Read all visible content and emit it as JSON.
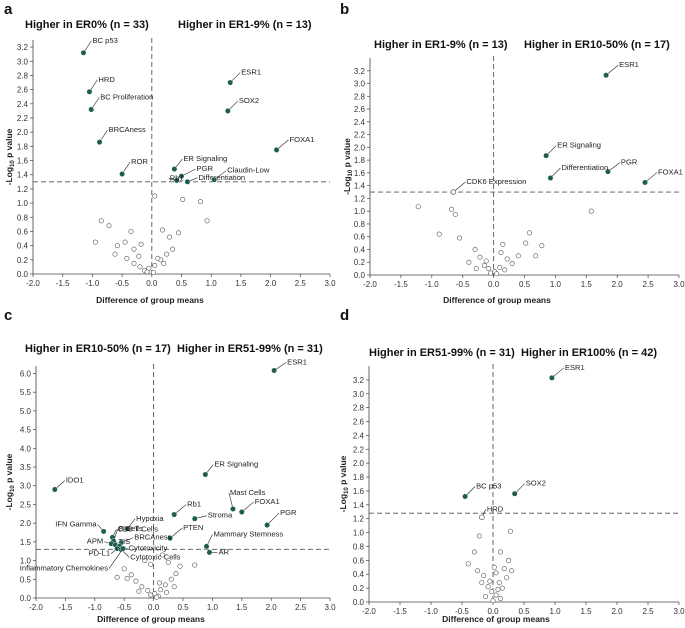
{
  "figure": {
    "ylabel_main": "-Log",
    "ylabel_sub": "10",
    "ylabel_tail": " p value",
    "xlabel": "Difference of group means",
    "colors": {
      "filled": "#1f5c52",
      "open_stroke": "#555555",
      "axis": "#444444",
      "dash": "#555555"
    }
  },
  "chart_data": [
    {
      "panel": "a",
      "type": "scatter",
      "header_left": "Higher in ER0% (n = 33)",
      "header_right": "Higher in ER1-9% (n = 13)",
      "xlabel": "Difference of group means",
      "ylabel": "-Log10 p value",
      "xlim": [
        -2.0,
        3.0
      ],
      "ylim": [
        0,
        3.3
      ],
      "x_ticks": [
        "-2.0",
        "-1.5",
        "-1.0",
        "-0.5",
        "0.0",
        "0.5",
        "1.0",
        "1.5",
        "2.0",
        "2.5",
        "3.0"
      ],
      "y_ticks": [
        "0.0",
        "0.2",
        "0.4",
        "0.6",
        "0.8",
        "1.0",
        "1.2",
        "1.4",
        "1.6",
        "1.8",
        "2.0",
        "2.2",
        "2.4",
        "2.6",
        "2.8",
        "3.0",
        "3.2"
      ],
      "threshold": 1.3,
      "labeled": [
        {
          "label": "BC p53",
          "x": -1.15,
          "y": 3.12
        },
        {
          "label": "HRD",
          "x": -1.05,
          "y": 2.57
        },
        {
          "label": "BC Proliferation",
          "x": -1.02,
          "y": 2.32
        },
        {
          "label": "BRCAness",
          "x": -0.88,
          "y": 1.86
        },
        {
          "label": "ROR",
          "x": -0.5,
          "y": 1.41
        },
        {
          "label": "ER Signaling",
          "x": 0.38,
          "y": 1.48
        },
        {
          "label": "PGR",
          "x": 0.5,
          "y": 1.38
        },
        {
          "label": "Rb1",
          "x": 0.42,
          "y": 1.32
        },
        {
          "label": "Differentiation",
          "x": 0.6,
          "y": 1.3
        },
        {
          "label": "Claudin-Low",
          "x": 1.05,
          "y": 1.33
        },
        {
          "label": "ESR1",
          "x": 1.32,
          "y": 2.7
        },
        {
          "label": "SOX2",
          "x": 1.28,
          "y": 2.3
        },
        {
          "label": "FOXA1",
          "x": 2.1,
          "y": 1.75
        }
      ],
      "unlabeled": [
        [
          0.05,
          1.1
        ],
        [
          0.52,
          1.05
        ],
        [
          0.82,
          1.02
        ],
        [
          0.93,
          0.75
        ],
        [
          0.18,
          0.62
        ],
        [
          0.3,
          0.52
        ],
        [
          -0.35,
          0.6
        ],
        [
          -0.85,
          0.75
        ],
        [
          -0.72,
          0.68
        ],
        [
          -0.58,
          0.4
        ],
        [
          -0.45,
          0.45
        ],
        [
          -0.3,
          0.35
        ],
        [
          -0.18,
          0.42
        ],
        [
          -0.95,
          0.45
        ],
        [
          -0.62,
          0.28
        ],
        [
          -0.42,
          0.22
        ],
        [
          -0.3,
          0.15
        ],
        [
          -0.2,
          0.1
        ],
        [
          -0.12,
          0.05
        ],
        [
          -0.05,
          0.08
        ],
        [
          0.05,
          0.12
        ],
        [
          0.15,
          0.2
        ],
        [
          0.25,
          0.28
        ],
        [
          0.35,
          0.35
        ],
        [
          0.45,
          0.58
        ],
        [
          0.2,
          0.15
        ],
        [
          0.1,
          0.22
        ],
        [
          -0.08,
          0.03
        ],
        [
          0.03,
          0.02
        ],
        [
          -0.22,
          0.25
        ]
      ]
    },
    {
      "panel": "b",
      "type": "scatter",
      "header_left": "Higher in ER1-9% (n = 13)",
      "header_right": "Higher in ER10-50% (n = 17)",
      "xlabel": "Difference of group means",
      "ylabel": "-Log10 p value",
      "xlim": [
        -2.0,
        3.0
      ],
      "ylim": [
        0,
        3.4
      ],
      "x_ticks": [
        "-2.0",
        "-1.5",
        "-1.0",
        "-0.5",
        "0.0",
        "0.5",
        "1.0",
        "1.5",
        "2.0",
        "2.5",
        "3.0"
      ],
      "y_ticks": [
        "0.0",
        "0.2",
        "0.4",
        "0.6",
        "0.8",
        "1.0",
        "1.2",
        "1.4",
        "1.6",
        "1.8",
        "2.0",
        "2.2",
        "2.4",
        "2.6",
        "2.8",
        "3.0",
        "3.2"
      ],
      "threshold": 1.3,
      "labeled": [
        {
          "label": "ESR1",
          "x": 1.82,
          "y": 3.13
        },
        {
          "label": "ER Signaling",
          "x": 0.85,
          "y": 1.87
        },
        {
          "label": "PGR",
          "x": 1.85,
          "y": 1.62
        },
        {
          "label": "Differentiation",
          "x": 0.92,
          "y": 1.52
        },
        {
          "label": "FOXA1",
          "x": 2.45,
          "y": 1.45
        },
        {
          "label": "CDK6 Expression",
          "x": -0.65,
          "y": 1.3,
          "open": true
        }
      ],
      "unlabeled": [
        [
          -1.22,
          1.07
        ],
        [
          -0.68,
          1.03
        ],
        [
          -0.62,
          0.95
        ],
        [
          1.58,
          1.0
        ],
        [
          -0.88,
          0.64
        ],
        [
          -0.55,
          0.58
        ],
        [
          0.58,
          0.66
        ],
        [
          0.78,
          0.46
        ],
        [
          0.68,
          0.3
        ],
        [
          0.52,
          0.5
        ],
        [
          0.15,
          0.48
        ],
        [
          -0.3,
          0.4
        ],
        [
          -0.22,
          0.28
        ],
        [
          -0.4,
          0.2
        ],
        [
          -0.15,
          0.15
        ],
        [
          -0.08,
          0.1
        ],
        [
          0.02,
          0.05
        ],
        [
          0.1,
          0.12
        ],
        [
          0.22,
          0.25
        ],
        [
          0.3,
          0.18
        ],
        [
          0.18,
          0.08
        ],
        [
          -0.05,
          0.03
        ],
        [
          0.05,
          0.02
        ],
        [
          -0.28,
          0.1
        ],
        [
          0.4,
          0.3
        ],
        [
          0.12,
          0.35
        ],
        [
          -0.12,
          0.22
        ]
      ]
    },
    {
      "panel": "c",
      "type": "scatter",
      "header_left": "Higher in ER10-50% (n = 17)",
      "header_right": "Higher in ER51-99% (n = 31)",
      "xlabel": "Difference of group means",
      "ylabel": "-Log10 p value",
      "xlim": [
        -2.0,
        3.0
      ],
      "ylim": [
        0,
        6.2
      ],
      "x_ticks": [
        "-2.0",
        "-1.5",
        "-1.0",
        "-0.5",
        "0.0",
        "0.5",
        "1.0",
        "1.5",
        "2.0",
        "2.5",
        "3.0"
      ],
      "y_ticks": [
        "0.0",
        "0.5",
        "1.0",
        "1.5",
        "2.0",
        "2.5",
        "3.0",
        "3.5",
        "4.0",
        "4.5",
        "5.0",
        "5.5",
        "6.0"
      ],
      "threshold": 1.3,
      "labeled": [
        {
          "label": "ESR1",
          "x": 2.05,
          "y": 6.08
        },
        {
          "label": "IDO1",
          "x": -1.68,
          "y": 2.9
        },
        {
          "label": "ER Signaling",
          "x": 0.88,
          "y": 3.3
        },
        {
          "label": "Rb1",
          "x": 0.35,
          "y": 2.23
        },
        {
          "label": "Stroma",
          "x": 0.7,
          "y": 2.12
        },
        {
          "label": "Mast Cells",
          "x": 1.35,
          "y": 2.38
        },
        {
          "label": "FOXA1",
          "x": 1.5,
          "y": 2.3
        },
        {
          "label": "PGR",
          "x": 1.93,
          "y": 1.95
        },
        {
          "label": "Mammary Stemness",
          "x": 0.9,
          "y": 1.38
        },
        {
          "label": "AR",
          "x": 0.95,
          "y": 1.22
        },
        {
          "label": "PTEN",
          "x": 0.28,
          "y": 1.6
        },
        {
          "label": "IFN Gamma",
          "x": -0.85,
          "y": 1.78
        },
        {
          "label": "Hypoxia",
          "x": -0.45,
          "y": 1.85
        },
        {
          "label": "CD8 T Cells",
          "x": -0.7,
          "y": 1.62
        },
        {
          "label": "B Cells",
          "x": -0.68,
          "y": 1.52
        },
        {
          "label": "APM",
          "x": -0.72,
          "y": 1.45
        },
        {
          "label": "TIS",
          "x": -0.65,
          "y": 1.42
        },
        {
          "label": "BRCAness",
          "x": -0.55,
          "y": 1.48
        },
        {
          "label": "Cytotoxicity",
          "x": -0.58,
          "y": 1.38
        },
        {
          "label": "PD-L1",
          "x": -0.62,
          "y": 1.32
        },
        {
          "label": "Cytotoxic Cells",
          "x": -0.55,
          "y": 1.3
        },
        {
          "label": "Inflammatory Chemokines",
          "x": -0.52,
          "y": 1.32
        }
      ],
      "unlabeled": [
        [
          -0.15,
          1.0
        ],
        [
          -0.05,
          0.9
        ],
        [
          0.15,
          1.15
        ],
        [
          0.25,
          0.95
        ],
        [
          0.45,
          0.85
        ],
        [
          0.7,
          0.88
        ],
        [
          -0.5,
          0.78
        ],
        [
          -0.38,
          0.62
        ],
        [
          -0.45,
          0.52
        ],
        [
          -0.3,
          0.45
        ],
        [
          -0.2,
          0.3
        ],
        [
          -0.1,
          0.2
        ],
        [
          0.02,
          0.12
        ],
        [
          0.08,
          0.05
        ],
        [
          0.12,
          0.22
        ],
        [
          0.2,
          0.35
        ],
        [
          0.3,
          0.5
        ],
        [
          0.38,
          0.65
        ],
        [
          0.1,
          0.4
        ],
        [
          -0.05,
          0.08
        ],
        [
          0.05,
          0.02
        ],
        [
          -0.25,
          0.18
        ],
        [
          0.22,
          0.15
        ],
        [
          0.35,
          0.3
        ],
        [
          -0.62,
          0.55
        ]
      ]
    },
    {
      "panel": "d",
      "type": "scatter",
      "header_left": "Higher in ER51-99% (n = 31)",
      "header_right": "Higher in ER100% (n = 42)",
      "xlabel": "Difference of group means",
      "ylabel": "-Log10 p value",
      "xlim": [
        -2.0,
        3.0
      ],
      "ylim": [
        0,
        3.4
      ],
      "x_ticks": [
        "-2.0",
        "-1.5",
        "-1.0",
        "-0.5",
        "0.0",
        "0.5",
        "1.0",
        "1.5",
        "2.0",
        "2.5",
        "3.0"
      ],
      "y_ticks": [
        "0.0",
        "0.2",
        "0.4",
        "0.6",
        "0.8",
        "1.0",
        "1.2",
        "1.4",
        "1.6",
        "1.8",
        "2.0",
        "2.2",
        "2.4",
        "2.6",
        "2.8",
        "3.0",
        "3.2"
      ],
      "threshold": 1.28,
      "labeled": [
        {
          "label": "ESR1",
          "x": 0.95,
          "y": 3.23
        },
        {
          "label": "BC p53",
          "x": -0.45,
          "y": 1.52
        },
        {
          "label": "SOX2",
          "x": 0.35,
          "y": 1.56
        },
        {
          "label": "HRD",
          "x": -0.18,
          "y": 1.22,
          "open": true
        }
      ],
      "unlabeled": [
        [
          0.28,
          1.02
        ],
        [
          -0.22,
          0.95
        ],
        [
          -0.3,
          0.72
        ],
        [
          0.12,
          0.72
        ],
        [
          -0.4,
          0.55
        ],
        [
          -0.25,
          0.45
        ],
        [
          -0.15,
          0.38
        ],
        [
          0.05,
          0.42
        ],
        [
          0.18,
          0.48
        ],
        [
          0.25,
          0.6
        ],
        [
          0.22,
          0.35
        ],
        [
          0.1,
          0.28
        ],
        [
          -0.08,
          0.22
        ],
        [
          -0.02,
          0.15
        ],
        [
          0.05,
          0.1
        ],
        [
          0.12,
          0.05
        ],
        [
          -0.12,
          0.08
        ],
        [
          0.0,
          0.02
        ],
        [
          0.08,
          0.18
        ],
        [
          -0.18,
          0.28
        ],
        [
          0.15,
          0.2
        ],
        [
          0.3,
          0.45
        ],
        [
          -0.05,
          0.3
        ],
        [
          0.02,
          0.5
        ]
      ]
    }
  ]
}
